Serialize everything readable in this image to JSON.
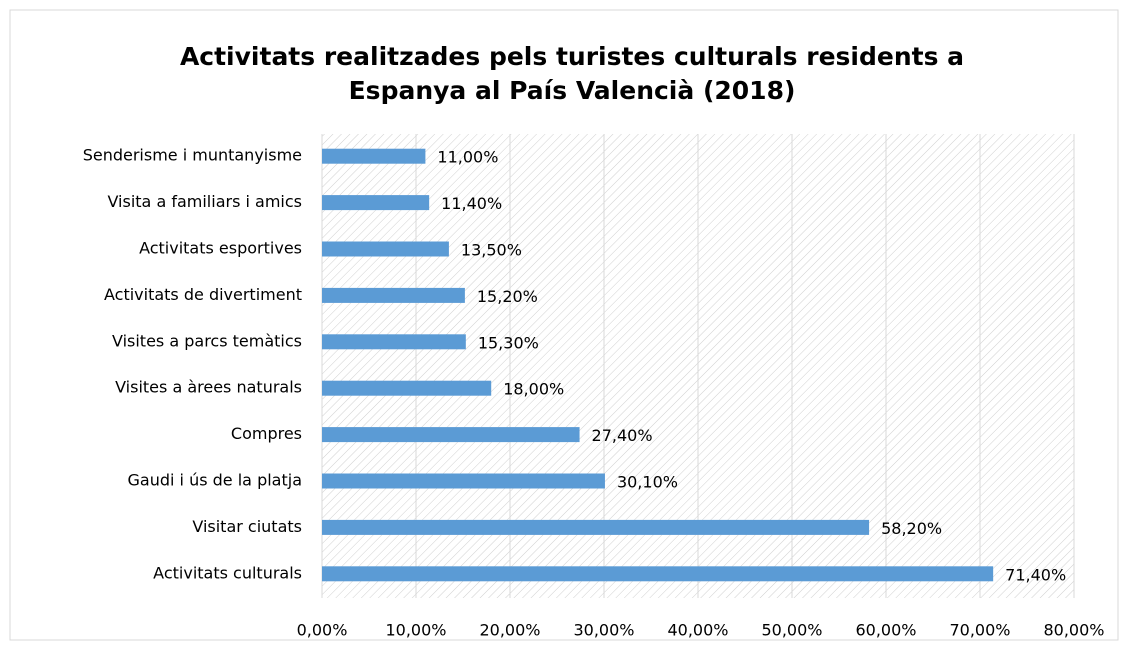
{
  "chart_data": {
    "type": "bar",
    "orientation": "horizontal",
    "title": [
      "Activitats realitzades pels turistes culturals residents a",
      "Espanya al País Valencià (2018)"
    ],
    "categories": [
      "Senderisme i muntanyisme",
      "Visita a familiars i amics",
      "Activitats esportives",
      "Activitats de divertiment",
      "Visites a parcs temàtics",
      "Visites a àrees naturals",
      "Compres",
      "Gaudi i ús de la platja",
      "Visitar ciutats",
      "Activitats culturals"
    ],
    "values": [
      11.0,
      11.4,
      13.5,
      15.2,
      15.3,
      18.0,
      27.4,
      30.1,
      58.2,
      71.4
    ],
    "value_labels": [
      "11,00%",
      "11,40%",
      "13,50%",
      "15,20%",
      "15,30%",
      "18,00%",
      "27,40%",
      "30,10%",
      "58,20%",
      "71,40%"
    ],
    "color": "#5b9bd5",
    "xlim": [
      0,
      80
    ],
    "xticks": [
      {
        "value": 0,
        "label": "0,00%"
      },
      {
        "value": 10,
        "label": "10,00%"
      },
      {
        "value": 20,
        "label": "20,00%"
      },
      {
        "value": 30,
        "label": "30,00%"
      },
      {
        "value": 40,
        "label": "40,00%"
      },
      {
        "value": 50,
        "label": "50,00%"
      },
      {
        "value": 60,
        "label": "60,00%"
      },
      {
        "value": 70,
        "label": "70,00%"
      },
      {
        "value": 80,
        "label": "80,00%"
      }
    ],
    "grid": true
  }
}
